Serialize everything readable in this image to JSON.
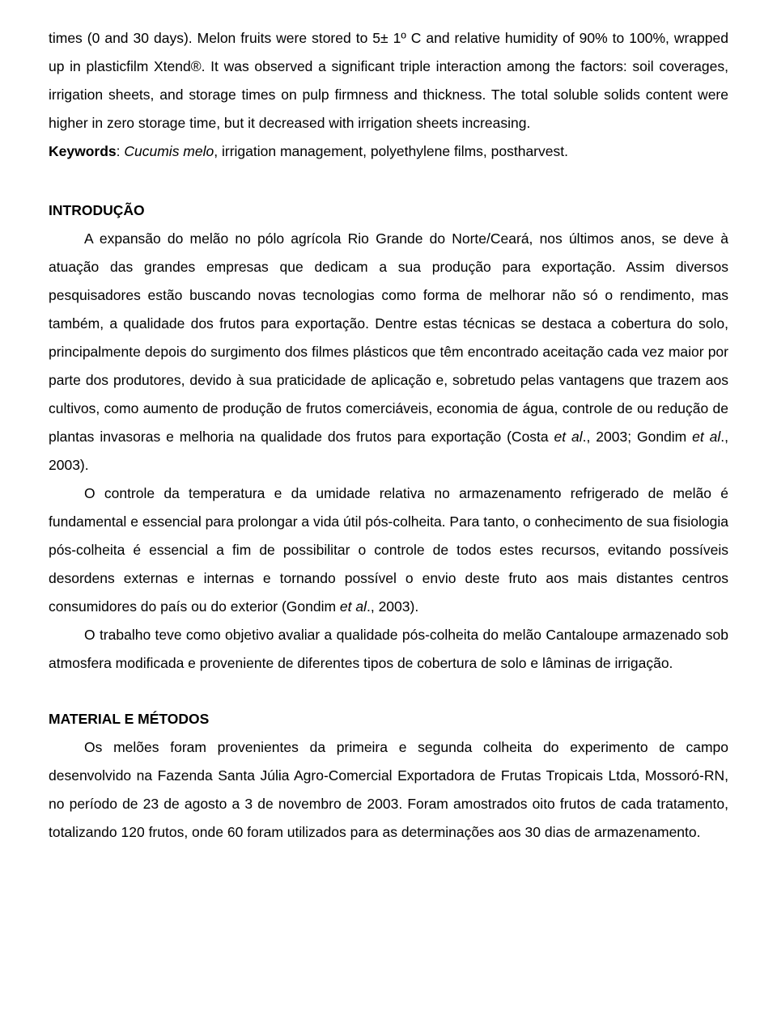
{
  "abstract_continuation": "times (0 and 30 days). Melon fruits were stored to 5± 1º C and relative humidity of 90% to 100%, wrapped up in plasticfilm Xtend®. It was observed a significant triple interaction among the factors: soil coverages, irrigation sheets, and storage times on pulp firmness and thickness. The total soluble solids content were higher in zero storage time, but it decreased with irrigation sheets increasing.",
  "keywords": {
    "label": "Keywords",
    "italic_part": "Cucumis melo",
    "rest": ", irrigation management, polyethylene films, postharvest."
  },
  "section_intro": {
    "heading": "INTRODUÇÃO",
    "p1_before": "A expansão do melão no pólo agrícola Rio Grande do Norte/Ceará, nos últimos anos, se deve à atuação das grandes empresas que dedicam a sua produção para exportação. Assim diversos pesquisadores estão buscando novas tecnologias como forma de melhorar não só o rendimento, mas também, a qualidade dos frutos para exportação. Dentre estas técnicas se destaca a cobertura do solo, principalmente depois do surgimento dos filmes plásticos que têm encontrado aceitação cada vez maior por parte dos produtores, devido à sua praticidade de aplicação e, sobretudo pelas vantagens que trazem aos cultivos, como aumento de produção de frutos comerciáveis, economia de água, controle de ou redução de plantas invasoras e melhoria na qualidade dos frutos para exportação (Costa ",
    "p1_etal1": "et al",
    "p1_mid": "., 2003; Gondim ",
    "p1_etal2": "et al",
    "p1_after": "., 2003).",
    "p2_before": "O controle da temperatura e da umidade relativa no armazenamento refrigerado de melão é fundamental e essencial para prolongar a vida útil pós-colheita. Para tanto, o conhecimento de sua fisiologia pós-colheita é essencial a fim de possibilitar o controle de todos estes recursos, evitando possíveis desordens externas e internas e tornando possível o envio deste fruto aos mais distantes centros consumidores do país ou do exterior (Gondim ",
    "p2_etal": "et al",
    "p2_after": "., 2003).",
    "p3": "O trabalho teve como objetivo avaliar a qualidade pós-colheita do melão Cantaloupe armazenado sob atmosfera modificada e proveniente de diferentes tipos de cobertura de solo e lâminas de irrigação."
  },
  "section_methods": {
    "heading": "MATERIAL E MÉTODOS",
    "p1": "Os melões foram provenientes da primeira e segunda colheita do experimento de campo desenvolvido na Fazenda Santa Júlia Agro-Comercial Exportadora de Frutas Tropicais Ltda, Mossoró-RN, no período de 23 de agosto a 3 de novembro de 2003. Foram amostrados oito frutos de cada tratamento, totalizando 120 frutos, onde 60 foram utilizados para as determinações aos 30 dias de armazenamento."
  }
}
